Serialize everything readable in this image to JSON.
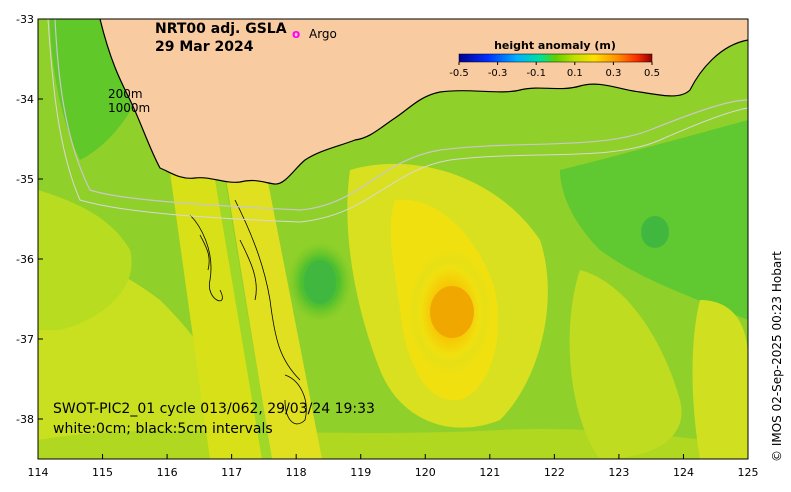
{
  "map": {
    "title_line1": "NRT00 adj. GSLA",
    "title_line2": "29 Mar 2024",
    "argo_symbol": "o",
    "argo_label": "Argo",
    "isobath_labels": [
      "200m",
      "1000m"
    ],
    "swath_caption_line1": "SWOT-PIC2_01 cycle 013/062, 29/03/24 19:33",
    "swath_caption_line2": "white:0cm; black:5cm intervals",
    "credit": "© IMOS 02-Sep-2025 00:23 Hobart",
    "lon_ticks": [
      "114",
      "115",
      "116",
      "117",
      "118",
      "119",
      "120",
      "121",
      "122",
      "123",
      "124",
      "125"
    ],
    "lat_ticks": [
      "-33",
      "-34",
      "-35",
      "-36",
      "-37",
      "-38"
    ],
    "lon_range": [
      114,
      125
    ],
    "lat_range": [
      -38.5,
      -33
    ],
    "legend": {
      "title": "height anomaly (m)",
      "ticks": [
        "-0.5",
        "-0.3",
        "-0.1",
        "0.1",
        "0.3",
        "0.5"
      ],
      "range": [
        -0.5,
        0.5
      ]
    },
    "colors": {
      "land": "#f9cba0",
      "ocean_base": "#8fd02a",
      "argo_marker": "#ff00ff"
    }
  }
}
